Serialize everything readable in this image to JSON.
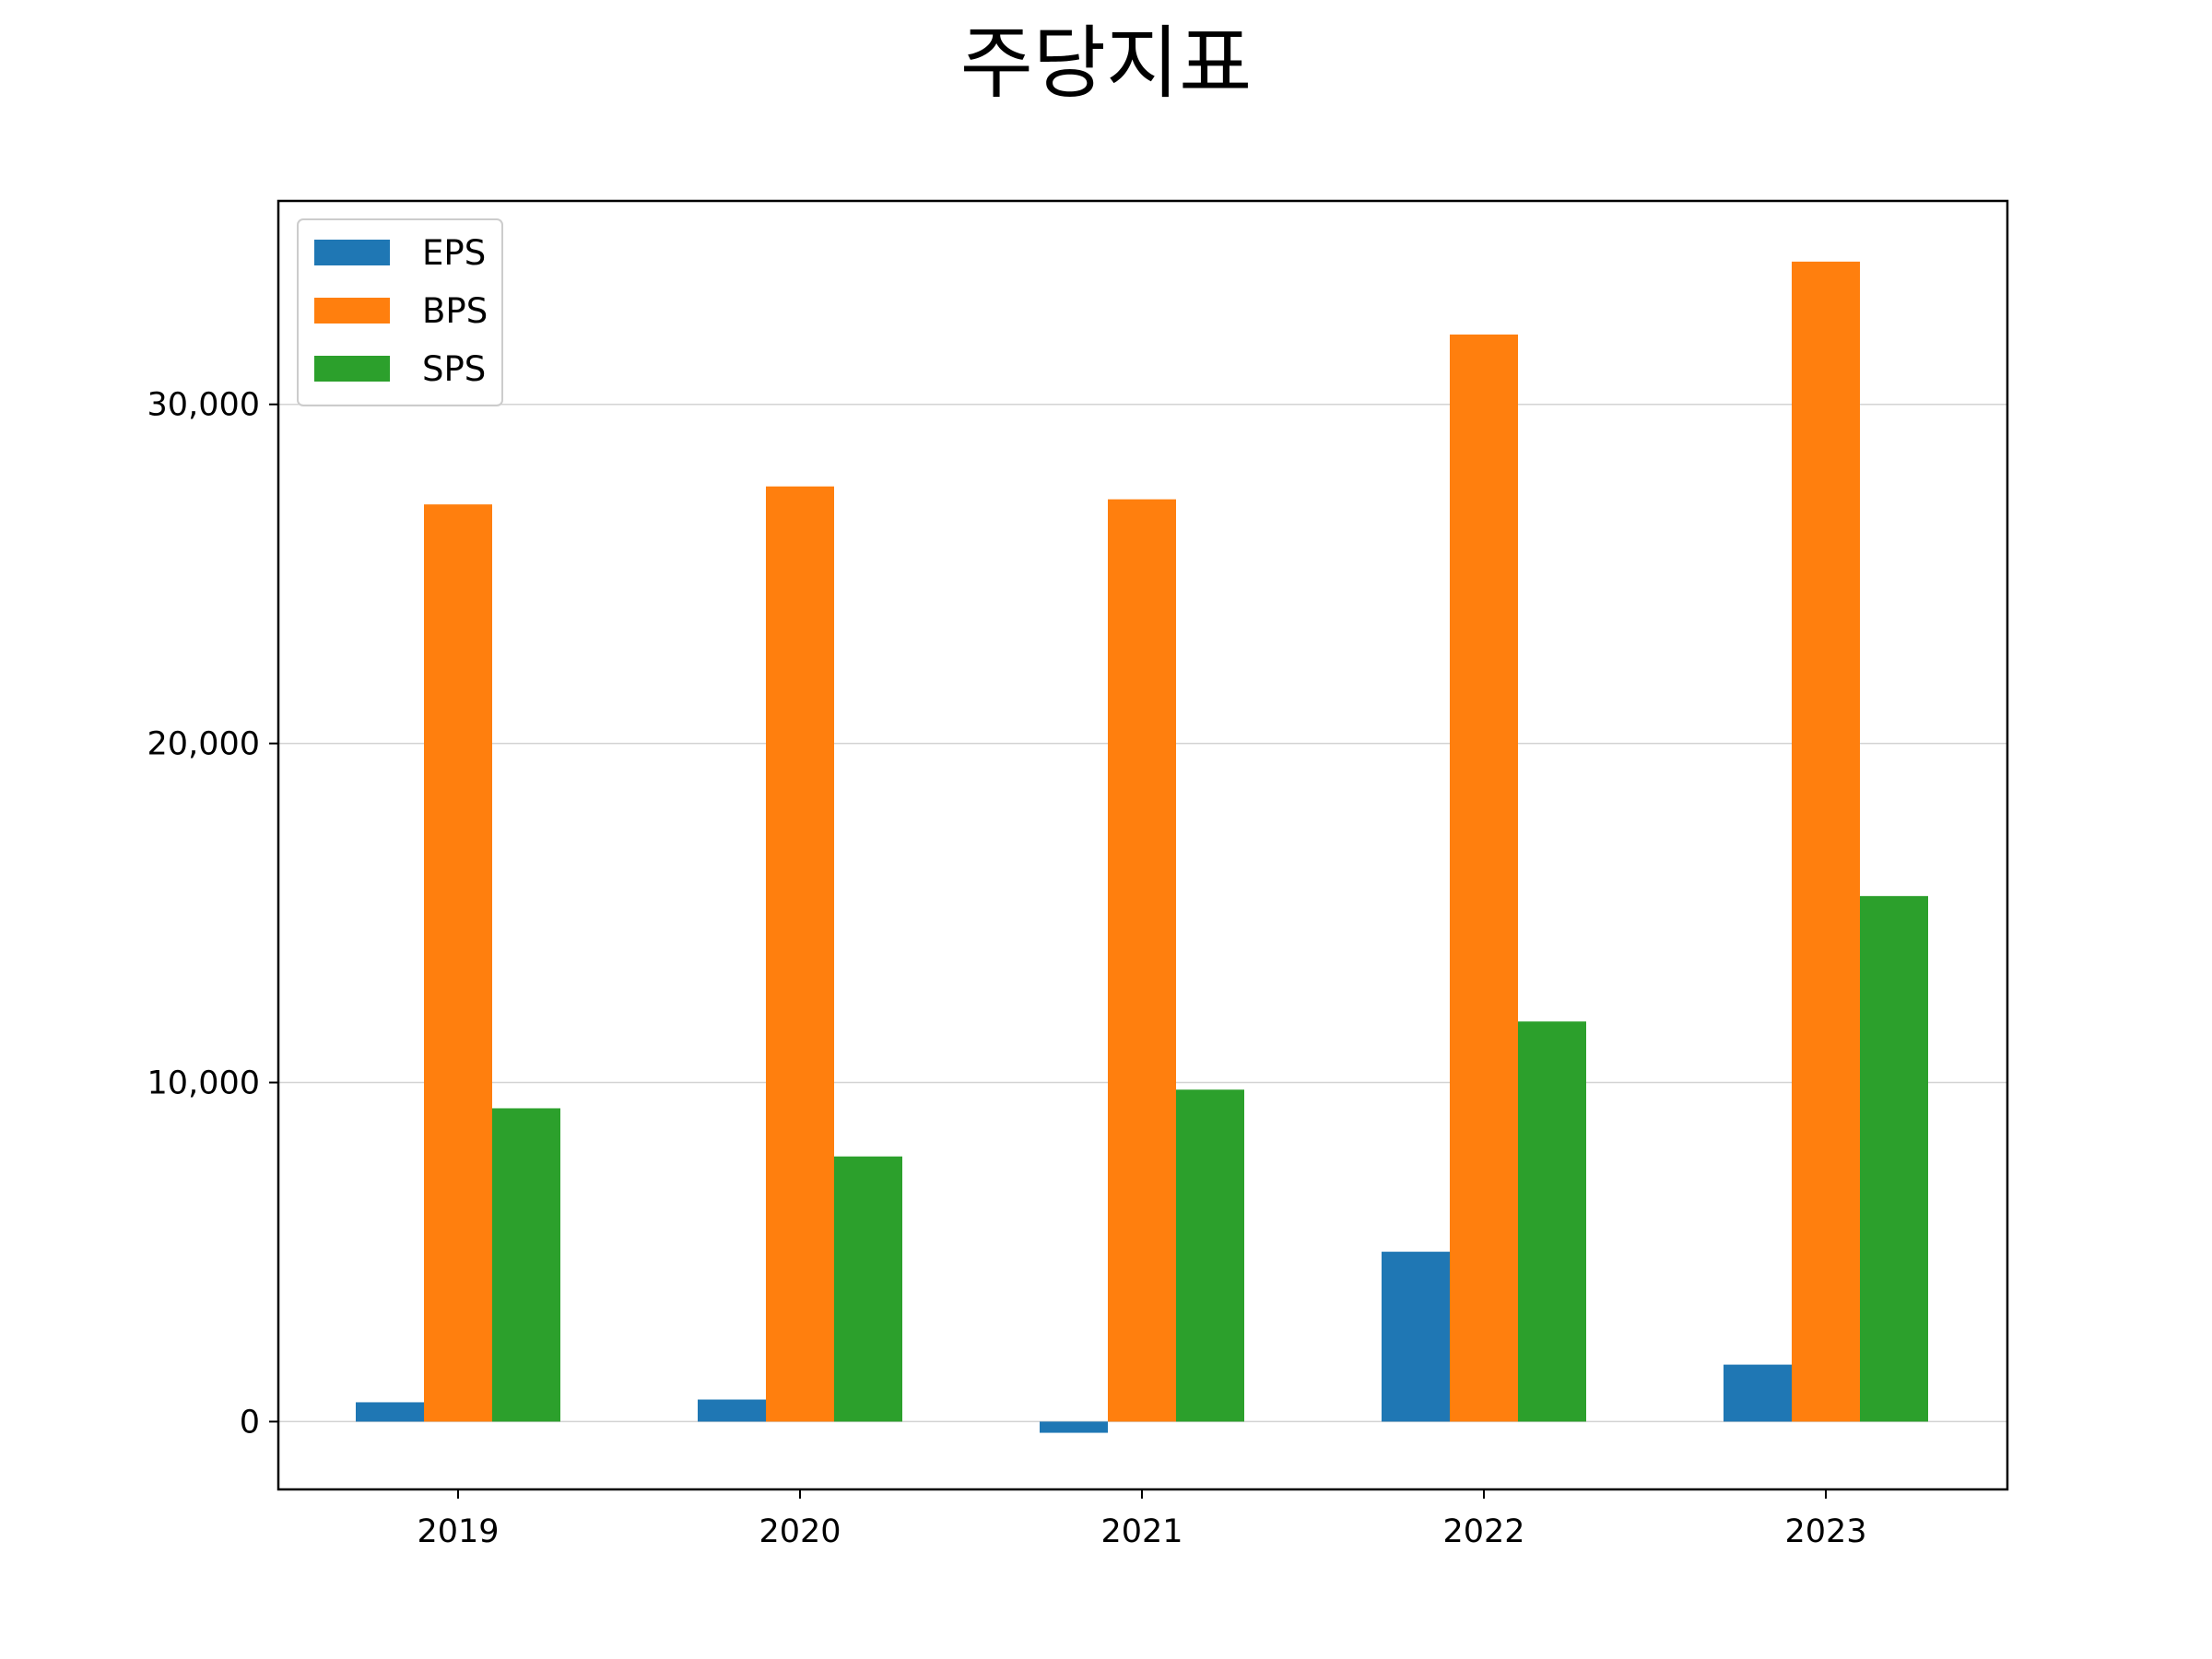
{
  "chart_data": {
    "type": "bar",
    "title": "주당지표",
    "xlabel": "",
    "ylabel": "",
    "categories": [
      "2019",
      "2020",
      "2021",
      "2022",
      "2023"
    ],
    "series": [
      {
        "name": "EPS",
        "color": "#1f77b4",
        "values": [
          570,
          650,
          -330,
          5010,
          1680
        ]
      },
      {
        "name": "BPS",
        "color": "#ff7f0e",
        "values": [
          27050,
          27580,
          27200,
          32060,
          34210
        ]
      },
      {
        "name": "SPS",
        "color": "#2ca02c",
        "values": [
          9240,
          7820,
          9790,
          11800,
          15500
        ]
      }
    ],
    "ylim": [
      -2000,
      36000
    ],
    "yticks": [
      0,
      10000,
      20000,
      30000
    ],
    "ytick_labels": [
      "0",
      "10,000",
      "20,000",
      "30,000"
    ],
    "grid": "y",
    "legend_position": "upper-left"
  }
}
